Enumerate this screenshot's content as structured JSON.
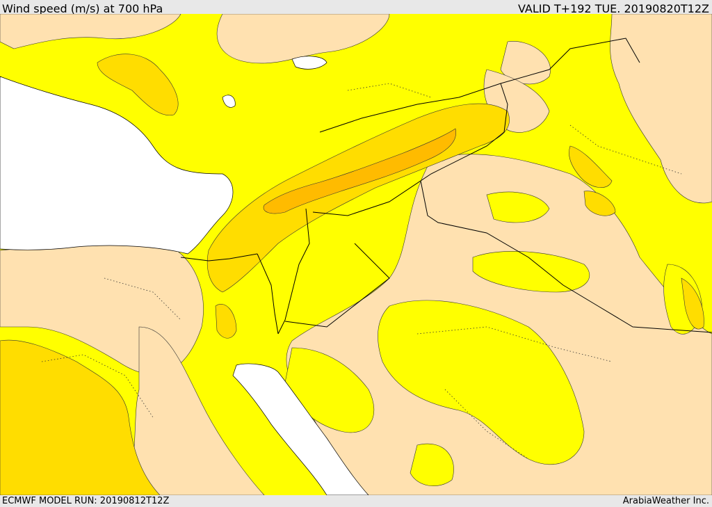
{
  "header": {
    "title": "Wind speed (m/s) at 700 hPa",
    "valid": "VALID T+192 TUE. 20190820T12Z"
  },
  "footer": {
    "model_run": "ECMWF MODEL RUN: 20190812T12Z",
    "credit": "ArabiaWeather Inc."
  },
  "colors": {
    "sea": "#ffffff",
    "band_lowest": "#ffe1b0",
    "band_low": "#ffff00",
    "band_mid": "#ffdd00",
    "band_high": "#ffbb00",
    "border": "#000000"
  }
}
